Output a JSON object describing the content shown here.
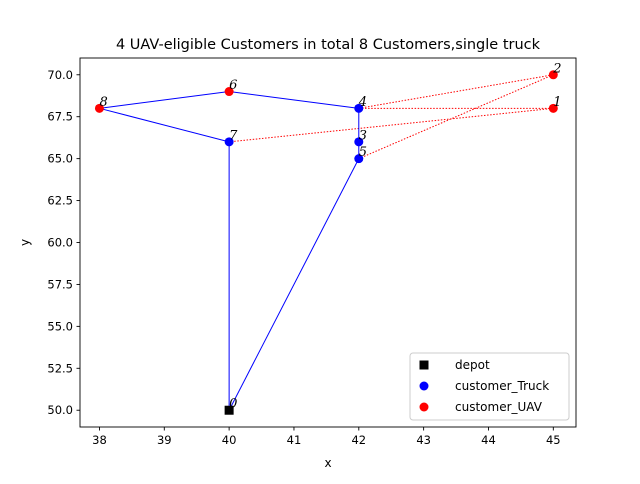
{
  "chart_data": {
    "type": "scatter",
    "title": "4 UAV-eligible Customers in total 8 Customers,single truck",
    "xlabel": "x",
    "ylabel": "y",
    "xlim": [
      37.7,
      45.35
    ],
    "ylim": [
      49.0,
      71.0
    ],
    "x_ticks": [
      38,
      39,
      40,
      41,
      42,
      43,
      44,
      45
    ],
    "x_tick_labels": [
      "38",
      "39",
      "40",
      "41",
      "42",
      "43",
      "44",
      "45"
    ],
    "y_ticks": [
      50.0,
      52.5,
      55.0,
      57.5,
      60.0,
      62.5,
      65.0,
      67.5,
      70.0
    ],
    "y_tick_labels": [
      "50.0",
      "52.5",
      "55.0",
      "57.5",
      "60.0",
      "62.5",
      "65.0",
      "67.5",
      "70.0"
    ],
    "grid": false,
    "legend_position": "lower-right",
    "legend": [
      {
        "label": "depot",
        "marker": "square",
        "color": "#000000"
      },
      {
        "label": "customer_Truck",
        "marker": "circle",
        "color": "#0000ff"
      },
      {
        "label": "customer_UAV",
        "marker": "circle",
        "color": "#ff0000"
      }
    ],
    "nodes": [
      {
        "id": "0",
        "x": 40,
        "y": 50,
        "kind": "depot"
      },
      {
        "id": "1",
        "x": 45,
        "y": 68,
        "kind": "uav"
      },
      {
        "id": "2",
        "x": 45,
        "y": 70,
        "kind": "uav"
      },
      {
        "id": "3",
        "x": 42,
        "y": 66,
        "kind": "truck"
      },
      {
        "id": "4",
        "x": 42,
        "y": 68,
        "kind": "truck"
      },
      {
        "id": "5",
        "x": 42,
        "y": 65,
        "kind": "truck"
      },
      {
        "id": "6",
        "x": 40,
        "y": 69,
        "kind": "uav"
      },
      {
        "id": "7",
        "x": 40,
        "y": 66,
        "kind": "truck"
      },
      {
        "id": "8",
        "x": 38,
        "y": 68,
        "kind": "uav"
      }
    ],
    "truck_route": [
      "0",
      "7",
      "8",
      "6",
      "4",
      "3",
      "5",
      "0"
    ],
    "uav_edges": [
      [
        "4",
        "2"
      ],
      [
        "2",
        "5"
      ],
      [
        "4",
        "1"
      ],
      [
        "1",
        "7"
      ]
    ],
    "colors": {
      "truck_route": "#0000ff",
      "uav_route": "#ff0000",
      "depot": "#000000",
      "truck_customer": "#0000ff",
      "uav_customer": "#ff0000"
    }
  }
}
